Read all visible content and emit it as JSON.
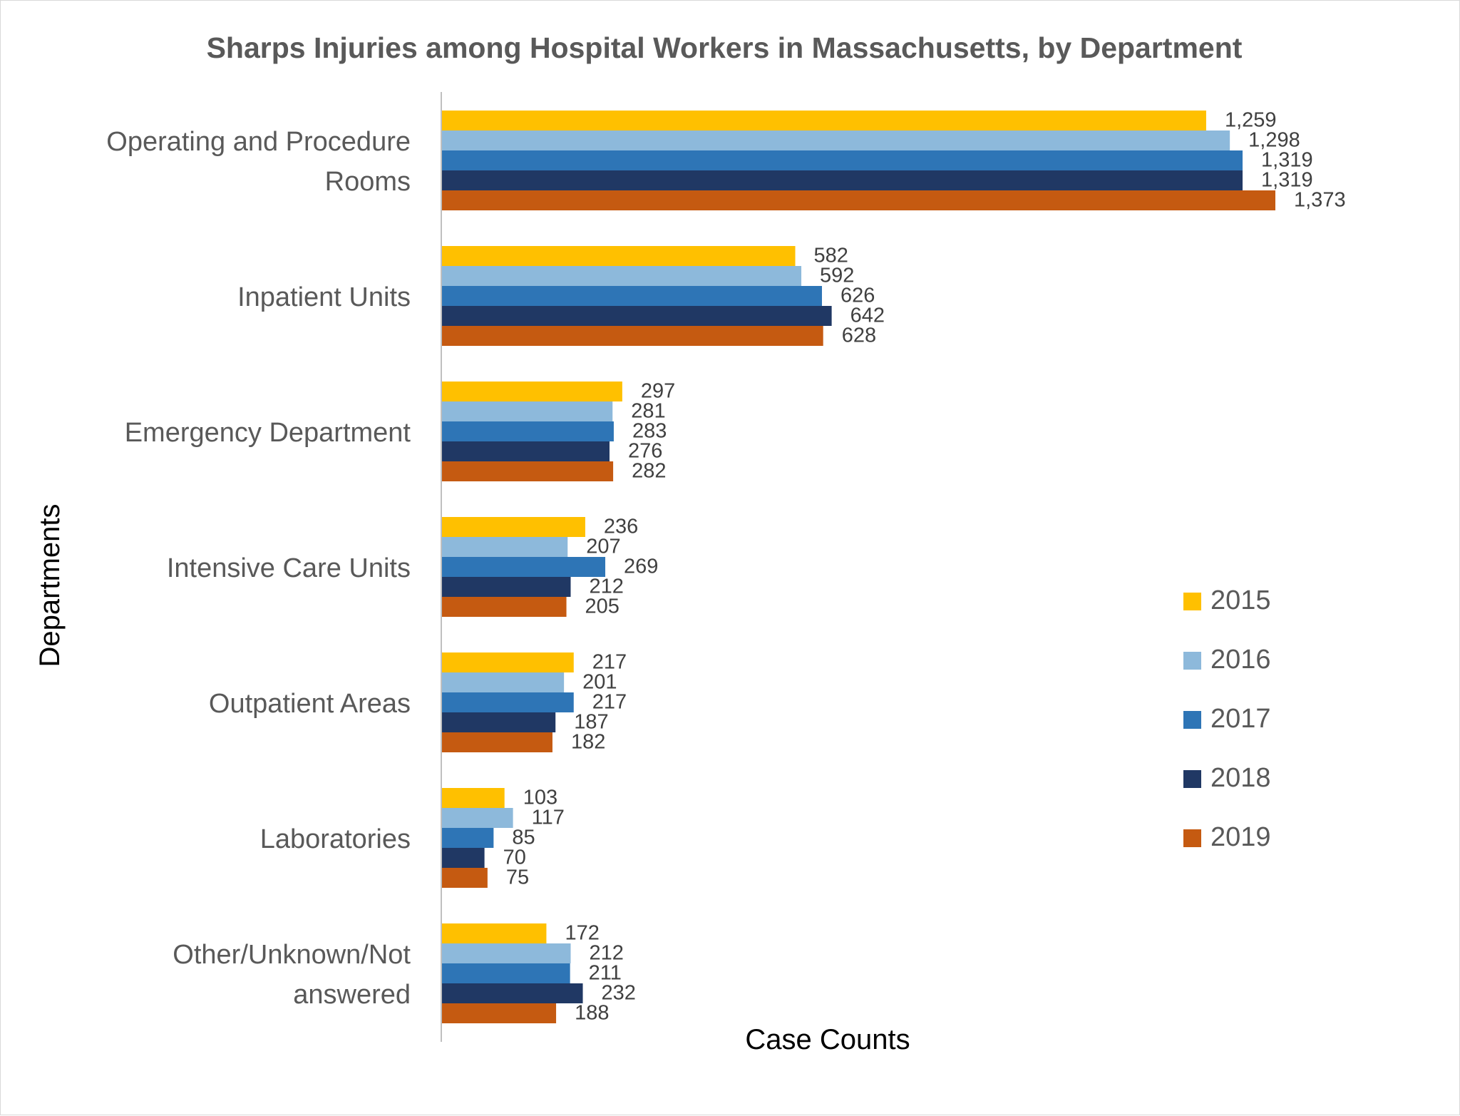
{
  "chart_data": {
    "type": "bar",
    "orientation": "horizontal",
    "title": "Sharps Injuries among Hospital Workers in Massachusetts, by Department",
    "xlabel": "Case Counts",
    "ylabel": "Departments",
    "categories": [
      [
        "Operating and Procedure",
        "Rooms"
      ],
      [
        "Inpatient Units"
      ],
      [
        "Emergency Department"
      ],
      [
        "Intensive Care Units"
      ],
      [
        "Outpatient Areas"
      ],
      [
        "Laboratories"
      ],
      [
        "Other/Unknown/Not",
        "answered"
      ]
    ],
    "series": [
      {
        "name": "2015",
        "color": "#FFC000",
        "values": [
          1259,
          582,
          297,
          236,
          217,
          103,
          172
        ],
        "labels": [
          "1,259",
          "582",
          "297",
          "236",
          "217",
          "103",
          "172"
        ]
      },
      {
        "name": "2016",
        "color": "#8DB9DB",
        "values": [
          1298,
          592,
          281,
          207,
          201,
          117,
          212
        ],
        "labels": [
          "1,298",
          "592",
          "281",
          "207",
          "201",
          "117",
          "212"
        ]
      },
      {
        "name": "2017",
        "color": "#2E75B6",
        "values": [
          1319,
          626,
          283,
          269,
          217,
          85,
          211
        ],
        "labels": [
          "1,319",
          "626",
          "283",
          "269",
          "217",
          "85",
          "211"
        ]
      },
      {
        "name": "2018",
        "color": "#203864",
        "values": [
          1319,
          642,
          276,
          212,
          187,
          70,
          232
        ],
        "labels": [
          "1,319",
          "642",
          "276",
          "212",
          "187",
          "70",
          "232"
        ]
      },
      {
        "name": "2019",
        "color": "#C55A11",
        "values": [
          1373,
          628,
          282,
          205,
          182,
          75,
          188
        ],
        "labels": [
          "1,373",
          "628",
          "282",
          "205",
          "182",
          "75",
          "188"
        ]
      }
    ],
    "xlim": [
      0,
      1373
    ],
    "grid": false,
    "legend_position": "right"
  }
}
